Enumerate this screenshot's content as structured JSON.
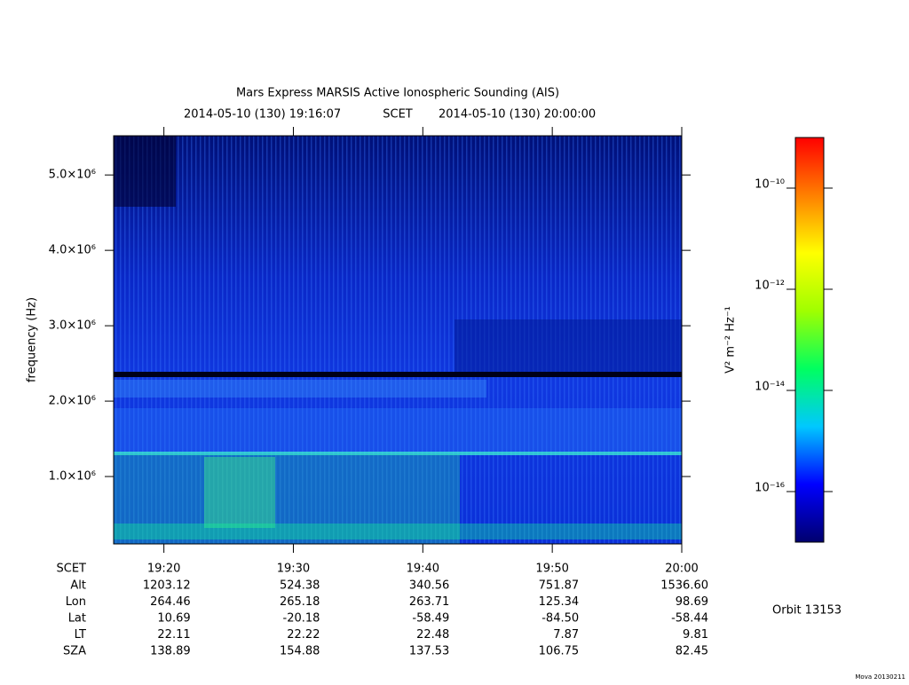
{
  "chart_data": {
    "type": "heatmap",
    "title": "Mars Express MARSIS Active Ionospheric Sounding (AIS)",
    "start_time": "2014-05-10 (130) 19:16:07",
    "time_system": "SCET",
    "end_time": "2014-05-10 (130) 20:00:00",
    "y_label": "frequency (Hz)",
    "xlim": [
      "19:16:07",
      "20:00:00"
    ],
    "xticks": [
      "19:20",
      "19:30",
      "19:40",
      "19:50",
      "20:00"
    ],
    "ylim": [
      106000,
      5520000
    ],
    "yticks": [
      {
        "value": 1000000,
        "label": "1.0×10⁶"
      },
      {
        "value": 2000000,
        "label": "2.0×10⁶"
      },
      {
        "value": 3000000,
        "label": "3.0×10⁶"
      },
      {
        "value": 4000000,
        "label": "4.0×10⁶"
      },
      {
        "value": 5000000,
        "label": "5.0×10⁶"
      }
    ],
    "colorbar": {
      "label": "V² m⁻² Hz⁻¹",
      "log_scale": true,
      "zlim": [
        1e-17,
        1e-09
      ],
      "ticks": [
        {
          "value": 1e-16,
          "label": "10⁻¹⁶"
        },
        {
          "value": 1e-14,
          "label": "10⁻¹⁴"
        },
        {
          "value": 1e-12,
          "label": "10⁻¹²"
        },
        {
          "value": 1e-10,
          "label": "10⁻¹⁰"
        }
      ],
      "colormap": [
        "#00006e",
        "#0000ff",
        "#00c8ff",
        "#00ff60",
        "#a0ff00",
        "#ffff00",
        "#ff8000",
        "#ff0000"
      ]
    },
    "ephemeris": {
      "time_label": "SCET",
      "rows": [
        {
          "name": "Alt",
          "values": [
            "1203.12",
            "524.38",
            "340.56",
            "751.87",
            "1536.60"
          ]
        },
        {
          "name": "Lon",
          "values": [
            "264.46",
            "265.18",
            "263.71",
            "125.34",
            "98.69"
          ]
        },
        {
          "name": "Lat",
          "values": [
            "10.69",
            "-20.18",
            "-58.49",
            "-84.50",
            "-58.44"
          ]
        },
        {
          "name": "LT",
          "values": [
            "22.11",
            "22.22",
            "22.48",
            "7.87",
            "9.81"
          ]
        },
        {
          "name": "SZA",
          "values": [
            "138.89",
            "154.88",
            "137.53",
            "106.75",
            "82.45"
          ]
        }
      ]
    },
    "orbit": "Orbit 13153",
    "footer": "Mova 20130211"
  }
}
